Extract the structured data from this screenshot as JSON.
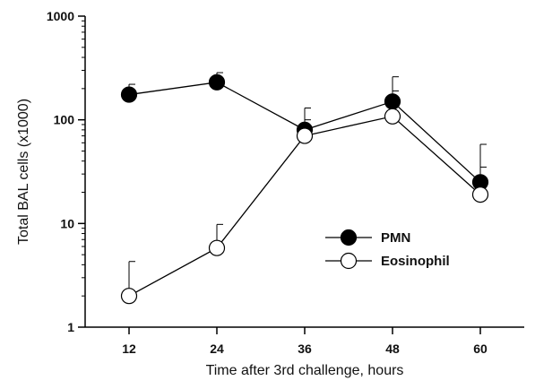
{
  "chart_data": {
    "type": "line",
    "title": "",
    "xlabel": "Time after 3rd challenge, hours",
    "ylabel": "Total BAL cells (x1000)",
    "x": [
      12,
      24,
      36,
      48,
      60
    ],
    "xticks": [
      "12",
      "24",
      "36",
      "48",
      "60"
    ],
    "xlim": [
      6,
      66
    ],
    "yscale": "log",
    "ylim": [
      1,
      1000
    ],
    "yticks": [
      "1",
      "10",
      "100",
      "1000"
    ],
    "grid": false,
    "legend_position": "center-right",
    "series": [
      {
        "name": "PMN",
        "marker": "filled-circle",
        "color": "#000000",
        "values": [
          175,
          230,
          80,
          150,
          25
        ],
        "error_upper": [
          220,
          285,
          130,
          260,
          35
        ]
      },
      {
        "name": "Eosinophil",
        "marker": "open-circle",
        "color": "#000000",
        "values": [
          2,
          5.8,
          70,
          108,
          19
        ],
        "error_upper": [
          4.3,
          9.8,
          100,
          190,
          58
        ]
      }
    ]
  }
}
